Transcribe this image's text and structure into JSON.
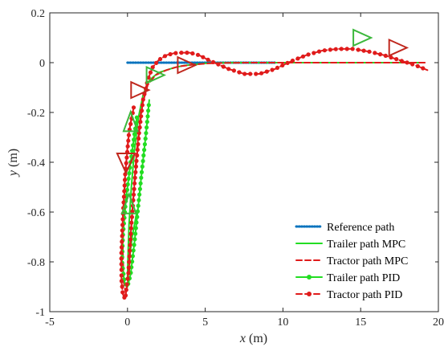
{
  "chart_data": {
    "type": "line",
    "title": "",
    "xlabel_var": "x",
    "xlabel_unit": " (m)",
    "ylabel_var": "y",
    "ylabel_unit": " (m)",
    "xlim": [
      -5,
      20
    ],
    "ylim": [
      -1,
      0.2
    ],
    "xticks": [
      -5,
      0,
      5,
      10,
      15,
      20
    ],
    "yticks": [
      -1,
      -0.8,
      -0.6,
      -0.4,
      -0.2,
      0,
      0.2
    ],
    "xtick_labels": [
      "-5",
      "0",
      "5",
      "10",
      "15",
      "20"
    ],
    "ytick_labels": [
      "-1",
      "-0.8",
      "-0.6",
      "-0.4",
      "-0.2",
      "0",
      "0.2"
    ],
    "grid": false,
    "legend_position": "bottom-right",
    "colors": {
      "reference": "#0072BD",
      "trailer": "#22DD22",
      "tractor": "#E01B1B",
      "trailer_marker": "#3CB83C",
      "tractor_marker": "#C0281E",
      "axis": "#262626"
    },
    "series": [
      {
        "name": "Reference path",
        "style": "dotted",
        "color": "#0072BD",
        "x": [
          0,
          9.5
        ],
        "y": [
          0,
          0
        ]
      },
      {
        "name": "Trailer path MPC",
        "style": "solid",
        "color": "#22DD22",
        "x": [
          0.6,
          0.3,
          0.1,
          0.02,
          0,
          0.02,
          0.1,
          0.25,
          0.45,
          0.7,
          1.0,
          1.3,
          1.6,
          2.0,
          2.5,
          3.0,
          3.6,
          4.2,
          5.0,
          6.0,
          7.0,
          8.0,
          9.0,
          10.0,
          11.0,
          12.0,
          13.0,
          14.0,
          15.0,
          16.0,
          17.0,
          18.0,
          19.0
        ],
        "y": [
          -0.6,
          -0.7,
          -0.8,
          -0.85,
          -0.87,
          -0.8,
          -0.65,
          -0.5,
          -0.35,
          -0.22,
          -0.13,
          -0.08,
          -0.06,
          -0.04,
          -0.03,
          -0.02,
          -0.012,
          -0.008,
          -0.003,
          -0.001,
          0,
          0,
          0,
          0,
          0,
          0,
          0,
          0,
          0,
          0,
          0,
          0,
          0
        ]
      },
      {
        "name": "Tractor path MPC",
        "style": "dashed",
        "color": "#E01B1B",
        "x": [
          0.3,
          0.05,
          -0.15,
          -0.25,
          -0.3,
          -0.25,
          -0.1,
          0.1,
          0.3,
          0.6,
          0.9,
          1.3,
          1.8,
          2.5,
          3.3,
          4.2,
          5.2,
          6.5,
          8.0,
          10.0,
          12.0,
          14.0,
          16.0,
          18.0,
          19.3
        ],
        "y": [
          -0.2,
          -0.3,
          -0.45,
          -0.6,
          -0.75,
          -0.88,
          -0.93,
          -0.85,
          -0.6,
          -0.35,
          -0.18,
          -0.09,
          -0.05,
          -0.03,
          -0.015,
          -0.008,
          -0.003,
          -0.001,
          0,
          0,
          0,
          0,
          0,
          0,
          0
        ]
      },
      {
        "name": "Trailer path PID",
        "style": "solid-dot",
        "color": "#22DD22",
        "x": [
          0.6,
          0.2,
          -0.1,
          -0.3,
          -0.35,
          -0.2,
          0,
          0.2,
          0.45,
          0.7,
          0.95,
          1.2,
          1.4
        ],
        "y": [
          -0.22,
          -0.4,
          -0.55,
          -0.7,
          -0.8,
          -0.88,
          -0.9,
          -0.85,
          -0.72,
          -0.57,
          -0.42,
          -0.28,
          -0.15
        ]
      },
      {
        "name": "Tractor path PID",
        "style": "dashed-dot",
        "color": "#E01B1B",
        "x": [
          0.4,
          0.1,
          -0.15,
          -0.3,
          -0.4,
          -0.38,
          -0.3,
          -0.15,
          0.05,
          0.25,
          0.5,
          0.75,
          1.0,
          1.3,
          1.6,
          2.0,
          2.5,
          3.0,
          3.5,
          4.0,
          4.6,
          5.4,
          6.5,
          7.5,
          8.5,
          9.5,
          10.5,
          11.5,
          12.5,
          13.5,
          14.5,
          15.5,
          16.5,
          17.5,
          18.5,
          19.3
        ],
        "y": [
          -0.18,
          -0.28,
          -0.45,
          -0.62,
          -0.78,
          -0.88,
          -0.93,
          -0.95,
          -0.85,
          -0.65,
          -0.45,
          -0.28,
          -0.15,
          -0.07,
          -0.02,
          0.01,
          0.03,
          0.038,
          0.04,
          0.04,
          0.03,
          0.005,
          -0.025,
          -0.045,
          -0.045,
          -0.025,
          0.005,
          0.03,
          0.048,
          0.055,
          0.055,
          0.045,
          0.03,
          0.01,
          -0.01,
          -0.03
        ]
      }
    ],
    "annotations": [
      {
        "kind": "triangle",
        "color": "#3CB83C",
        "x": 15.1,
        "y": 0.1,
        "dir": "right"
      },
      {
        "kind": "triangle",
        "color": "#C0281E",
        "x": 17.4,
        "y": 0.06,
        "dir": "right"
      },
      {
        "kind": "triangle",
        "color": "#3CB83C",
        "x": 1.8,
        "y": -0.05,
        "dir": "right"
      },
      {
        "kind": "triangle",
        "color": "#C0281E",
        "x": 3.8,
        "y": -0.01,
        "dir": "right"
      },
      {
        "kind": "triangle",
        "color": "#C0281E",
        "x": -0.1,
        "y": -0.4,
        "dir": "down"
      },
      {
        "kind": "triangle",
        "color": "#3CB83C",
        "x": 0.1,
        "y": -0.57,
        "dir": "up"
      },
      {
        "kind": "triangle",
        "color": "#3CB83C",
        "x": 0.2,
        "y": -0.24,
        "dir": "up"
      },
      {
        "kind": "triangle",
        "color": "#C0281E",
        "x": 0.8,
        "y": -0.11,
        "dir": "right"
      }
    ]
  }
}
